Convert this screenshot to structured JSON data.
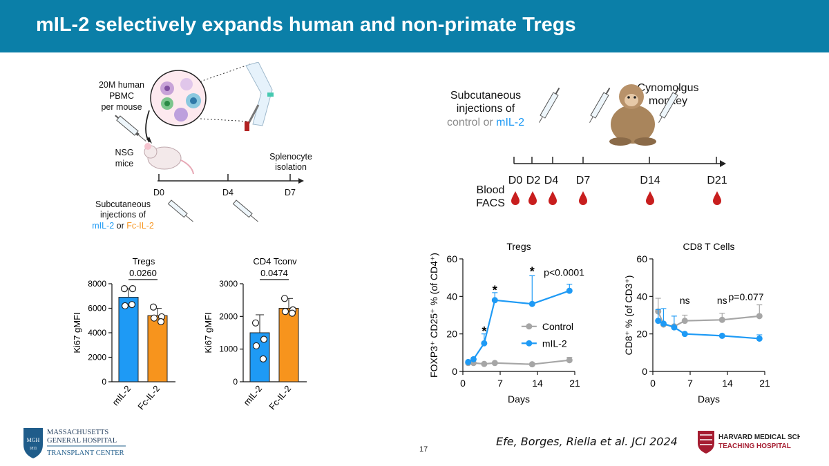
{
  "title": "mIL-2 selectively expands human and non-primate Tregs",
  "colors": {
    "header": "#0b7fa8",
    "blue": "#1e9af5",
    "orange": "#f7941d",
    "gray": "#a6a6a6",
    "blood": "#c81e1e"
  },
  "mouse_schematic": {
    "pbmc_label": [
      "20M human",
      "PBMC",
      "per mouse"
    ],
    "nsg_label": [
      "NSG",
      "mice"
    ],
    "splenocyte_label": [
      "Splenocyte",
      "isolation"
    ],
    "days": [
      "D0",
      "D4",
      "D7"
    ],
    "injection_label": [
      "Subcutaneous",
      "injections of"
    ],
    "inj_mil2": "mIL-2",
    "inj_or": " or ",
    "inj_fcil2": "Fc-IL-2"
  },
  "monkey_schematic": {
    "injection_label": [
      "Subcutaneous",
      "injections of"
    ],
    "inj_control": "control or ",
    "inj_mil2": "mIL-2",
    "species_label": [
      "Cynomolgus",
      "monkey"
    ],
    "days": [
      "D0",
      "D2",
      "D4",
      "D7",
      "D14",
      "D21"
    ],
    "blood_label": [
      "Blood",
      "FACS"
    ]
  },
  "chart_data": [
    {
      "type": "bar",
      "title": "Tregs",
      "ylabel": "Ki67 gMFI",
      "categories": [
        "mIL-2",
        "Fc-IL-2"
      ],
      "values": [
        6900,
        5400
      ],
      "errors": [
        700,
        600
      ],
      "points": [
        [
          7600,
          7600,
          6200,
          6300
        ],
        [
          6100,
          5300,
          5200,
          4900
        ]
      ],
      "ylim": [
        0,
        8000
      ],
      "yticks": [
        "0",
        "2000",
        "4000",
        "6000",
        "8000"
      ],
      "pvalue": "0.0260"
    },
    {
      "type": "bar",
      "title": "CD4 Tconv",
      "ylabel": "Ki67 gMFI",
      "categories": [
        "mIL-2",
        "Fc-IL-2"
      ],
      "values": [
        1500,
        2250
      ],
      "errors": [
        550,
        300
      ],
      "points": [
        [
          1800,
          1300,
          1100,
          700
        ],
        [
          2550,
          2200,
          2150,
          2100
        ]
      ],
      "ylim": [
        0,
        3000
      ],
      "yticks": [
        "0",
        "1000",
        "2000",
        "3000"
      ],
      "pvalue": "0.0474"
    },
    {
      "type": "line",
      "title": "Tregs",
      "ylabel": "FOXP3⁺ CD25⁺ % (of CD4⁺)",
      "xlabel": "Days",
      "xlim": [
        0,
        21
      ],
      "ylim": [
        0,
        60
      ],
      "xticks": [
        "0",
        "7",
        "14",
        "21"
      ],
      "yticks": [
        "0",
        "20",
        "40",
        "60"
      ],
      "series": [
        {
          "name": "Control",
          "x": [
            1,
            2,
            4,
            6,
            13,
            20
          ],
          "y": [
            4.5,
            4.5,
            4.0,
            4.5,
            3.8,
            6.0
          ],
          "err": [
            0,
            0,
            0,
            0,
            0,
            1.5
          ]
        },
        {
          "name": "mIL-2",
          "x": [
            1,
            2,
            4,
            6,
            13,
            20
          ],
          "y": [
            5.0,
            6.5,
            15.0,
            38.0,
            36.0,
            43.0
          ],
          "err": [
            0,
            0,
            5.0,
            4.0,
            15.0,
            3.5
          ]
        }
      ],
      "annotations": [
        {
          "x": 4,
          "y": 22,
          "text": "*"
        },
        {
          "x": 6,
          "y": 44,
          "text": "*"
        },
        {
          "x": 13,
          "y": 54,
          "text": "*"
        },
        {
          "x": 19,
          "y": 51,
          "text": "p<0.0001"
        }
      ]
    },
    {
      "type": "line",
      "title": "CD8 T Cells",
      "ylabel": "CD8⁺ % (of CD3⁺)",
      "xlabel": "Days",
      "xlim": [
        0,
        21
      ],
      "ylim": [
        0,
        60
      ],
      "xticks": [
        "0",
        "7",
        "14",
        "21"
      ],
      "yticks": [
        "0",
        "20",
        "40",
        "60"
      ],
      "series": [
        {
          "name": "Control",
          "x": [
            1,
            2,
            4,
            6,
            13,
            20
          ],
          "y": [
            32.0,
            25.0,
            24.0,
            27.0,
            27.5,
            29.5
          ],
          "err": [
            7.0,
            0,
            0,
            3.0,
            3.5,
            6.0
          ]
        },
        {
          "name": "mIL-2",
          "x": [
            1,
            2,
            4,
            6,
            13,
            20
          ],
          "y": [
            27.0,
            25.5,
            23.5,
            20.0,
            19.0,
            17.5
          ],
          "err": [
            6.0,
            8.0,
            6.0,
            0,
            0,
            2.0
          ]
        }
      ],
      "annotations": [
        {
          "x": 6,
          "y": 36,
          "text": "ns"
        },
        {
          "x": 13,
          "y": 36,
          "text": "ns"
        },
        {
          "x": 17.5,
          "y": 38,
          "text": "p=0.077"
        }
      ]
    }
  ],
  "footer": {
    "citation": "Efe, Borges, Riella et al. JCI 2024",
    "page_number": "17",
    "mgh_line1": "MASSACHUSETTS",
    "mgh_line2": "GENERAL HOSPITAL",
    "mgh_line3": "TRANSPLANT CENTER",
    "mgh_seal": "MGH",
    "mgh_seal_year": "1811",
    "hms_line1": "HARVARD MEDICAL SCHOOL",
    "hms_line2": "TEACHING HOSPITAL"
  }
}
